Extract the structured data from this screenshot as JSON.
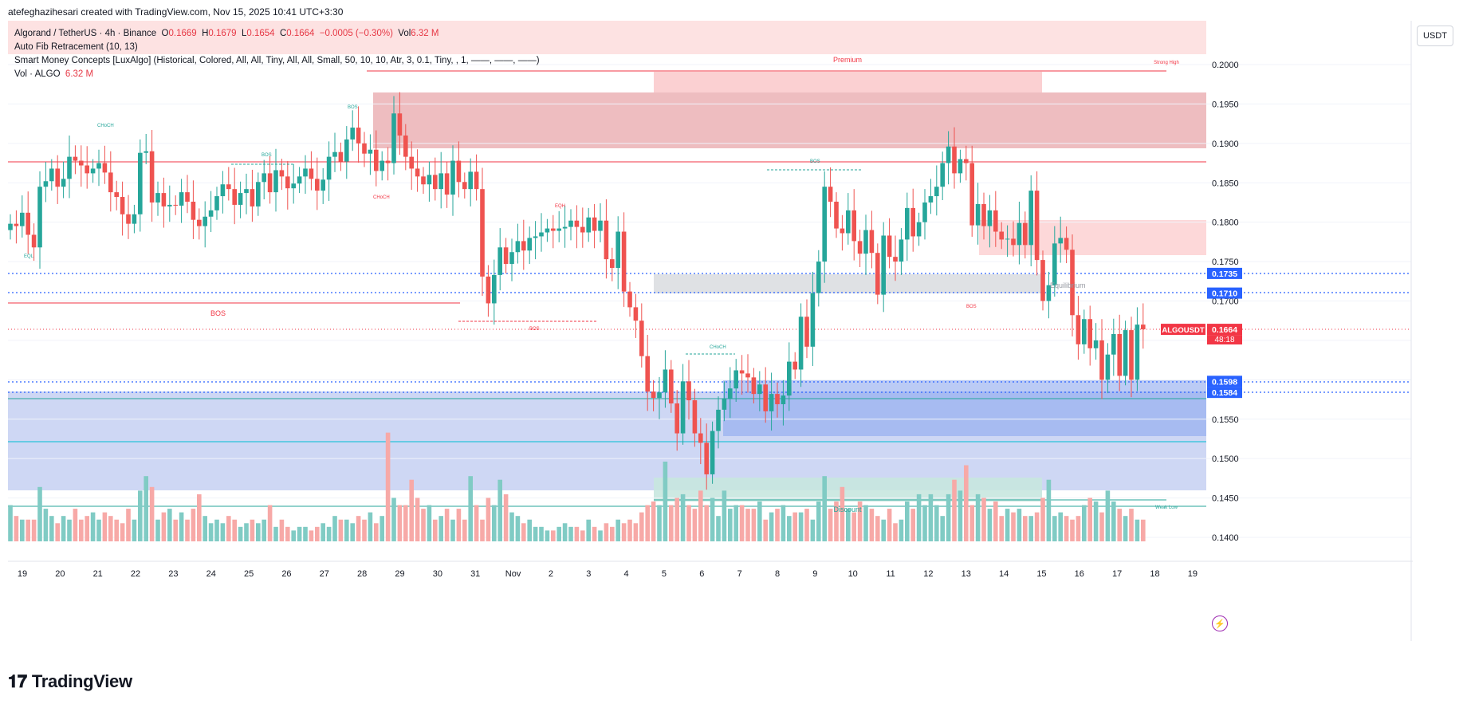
{
  "header": {
    "created_text": "atefeghazihesari created with TradingView.com, Nov 15, 2025 10:41 UTC+3:30"
  },
  "legend": {
    "symbol_line": "Algorand / TetherUS · 4h · Binance",
    "o_label": "O",
    "o_value": "0.1669",
    "h_label": "H",
    "h_value": "0.1679",
    "l_label": "L",
    "l_value": "0.1654",
    "c_label": "C",
    "c_value": "0.1664",
    "change": "−0.0005 (−0.30%)",
    "vol_label": "Vol",
    "vol_value": "6.32 M",
    "indicator1": "Auto Fib Retracement (10, 13)",
    "indicator2": "Smart Money Concepts [LuxAlgo] (Historical, Colored, All, All, Tiny, All, All, Small, 50, 10, 10, Atr, 3, 0.1, Tiny, , 1, ——, ——, ——)",
    "indicator3_label": "Vol · ALGO",
    "indicator3_value": "6.32 M"
  },
  "currency_button": "USDT",
  "brand": "TradingView",
  "colors": {
    "bull": "#26a69a",
    "bear": "#ef5350",
    "bull_vol": "#80cbc4",
    "bear_vol": "#f7a9a7",
    "price_label": "#f23645",
    "blue_label": "#2962ff"
  },
  "chart_data": {
    "type": "candlestick",
    "symbol": "ALGOUSDT",
    "timeframe": "4h",
    "ylim": [
      0.1395,
      0.2015
    ],
    "y_ticks": [
      "0.2000",
      "0.1950",
      "0.1900",
      "0.1850",
      "0.1800",
      "0.1750",
      "0.1700",
      "0.1650",
      "0.1600",
      "0.1550",
      "0.1500",
      "0.1450",
      "0.1400"
    ],
    "x_labels": [
      "19",
      "20",
      "21",
      "22",
      "23",
      "24",
      "25",
      "26",
      "27",
      "28",
      "29",
      "30",
      "31",
      "Nov",
      "2",
      "3",
      "4",
      "5",
      "6",
      "7",
      "8",
      "9",
      "10",
      "11",
      "12",
      "13",
      "14",
      "15",
      "16",
      "17",
      "18",
      "19"
    ],
    "price_labels": [
      {
        "text": "0.1735",
        "value": 0.1735,
        "color": "#2962ff"
      },
      {
        "text": "0.1710",
        "value": 0.171,
        "color": "#2962ff"
      },
      {
        "text": "0.1664",
        "value": 0.1664,
        "color": "#f23645",
        "symbol": "ALGOUSDT",
        "countdown": "48:18"
      },
      {
        "text": "0.1598",
        "value": 0.1598,
        "color": "#2962ff"
      },
      {
        "text": "0.1584",
        "value": 0.1584,
        "color": "#2962ff"
      }
    ],
    "zone_labels": {
      "premium": "Premium",
      "equilibrium": "Equilibrium",
      "discount": "Discount",
      "strong_high": "Strong High",
      "weak_low": "Weak Low"
    },
    "structure_labels": [
      "EQL",
      "CHoCH",
      "BOS",
      "BOS",
      "CHoCH",
      "BOS",
      "EQH",
      "BOS",
      "BOS",
      "CHoCH",
      "BOS",
      "CHoCH"
    ],
    "closes": [
      0.1798,
      0.1795,
      0.1812,
      0.1784,
      0.1768,
      0.1845,
      0.1852,
      0.1868,
      0.1845,
      0.1855,
      0.1883,
      0.1878,
      0.1872,
      0.1862,
      0.1868,
      0.1875,
      0.1863,
      0.1838,
      0.1832,
      0.181,
      0.1798,
      0.181,
      0.1888,
      0.189,
      0.1825,
      0.1837,
      0.182,
      0.1822,
      0.1821,
      0.1838,
      0.1826,
      0.1803,
      0.1795,
      0.1807,
      0.1815,
      0.1833,
      0.1848,
      0.1842,
      0.1822,
      0.1837,
      0.1842,
      0.182,
      0.1851,
      0.1862,
      0.1838,
      0.1866,
      0.1858,
      0.1843,
      0.1849,
      0.1858,
      0.1868,
      0.1855,
      0.184,
      0.1854,
      0.1883,
      0.1889,
      0.1877,
      0.1905,
      0.192,
      0.19,
      0.1887,
      0.1892,
      0.1865,
      0.1878,
      0.1875,
      0.1938,
      0.191,
      0.1883,
      0.1868,
      0.1858,
      0.1848,
      0.186,
      0.1842,
      0.1862,
      0.1835,
      0.1878,
      0.1851,
      0.1842,
      0.1864,
      0.1842,
      0.1731,
      0.1697,
      0.1733,
      0.1768,
      0.1747,
      0.1762,
      0.1776,
      0.1764,
      0.178,
      0.1782,
      0.1787,
      0.1792,
      0.1789,
      0.1792,
      0.1794,
      0.1802,
      0.1794,
      0.1787,
      0.1806,
      0.1789,
      0.1802,
      0.1753,
      0.1742,
      0.1788,
      0.1712,
      0.1692,
      0.1675,
      0.163,
      0.1585,
      0.1577,
      0.1584,
      0.1613,
      0.157,
      0.1532,
      0.1598,
      0.1574,
      0.1532,
      0.152,
      0.148,
      0.1535,
      0.1562,
      0.1576,
      0.1589,
      0.1612,
      0.1608,
      0.1603,
      0.1582,
      0.1594,
      0.156,
      0.1582,
      0.1569,
      0.158,
      0.1623,
      0.1613,
      0.168,
      0.1642,
      0.171,
      0.175,
      0.1845,
      0.1826,
      0.1792,
      0.1786,
      0.1815,
      0.1776,
      0.176,
      0.179,
      0.1761,
      0.1708,
      0.1783,
      0.1756,
      0.175,
      0.1778,
      0.1818,
      0.1782,
      0.18,
      0.1825,
      0.1833,
      0.1845,
      0.1875,
      0.1896,
      0.1862,
      0.188,
      0.1875,
      0.1796,
      0.1823,
      0.1795,
      0.1815,
      0.1788,
      0.1778,
      0.1779,
      0.1771,
      0.1799,
      0.1771,
      0.184,
      0.1752,
      0.17,
      0.172,
      0.1773,
      0.178,
      0.1765,
      0.1682,
      0.1645,
      0.1677,
      0.164,
      0.165,
      0.16,
      0.1632,
      0.1658,
      0.1605,
      0.1663,
      0.16,
      0.167,
      0.1664
    ],
    "volumes": [
      5,
      3.5,
      3,
      3,
      3,
      7.5,
      4.5,
      3.5,
      2.5,
      3.5,
      3,
      4.5,
      3,
      3.5,
      4,
      3,
      4,
      3.5,
      3,
      2.5,
      4.5,
      3,
      7,
      9,
      7.5,
      3,
      4,
      4.5,
      3,
      4,
      3,
      4.5,
      6.5,
      3.5,
      2.5,
      3,
      2.5,
      3.5,
      3,
      2,
      2.5,
      3,
      2.5,
      3,
      5,
      2,
      3,
      2,
      1.5,
      2,
      2,
      1.5,
      2,
      2.5,
      2,
      3.5,
      3,
      3,
      2.5,
      3.5,
      3,
      4,
      2.5,
      3.5,
      15,
      6,
      5,
      5,
      8.5,
      6,
      4.5,
      5,
      3,
      3.5,
      4.5,
      3,
      4.5,
      3,
      9,
      5,
      3,
      6,
      5,
      8.5,
      6.5,
      4,
      3.5,
      2.5,
      3,
      2,
      2,
      1.5,
      1.5,
      2,
      2.5,
      2,
      2,
      1.5,
      3,
      2,
      1.5,
      2.5,
      2,
      3,
      2.5,
      3,
      2.5,
      4,
      5,
      5.5,
      5,
      11,
      5,
      6,
      6.5,
      5,
      4.5,
      7,
      5,
      6,
      3.5,
      7,
      4.5,
      5,
      5,
      4.5,
      4.5,
      5.5,
      3,
      4,
      4.5,
      5,
      3.5,
      4,
      4,
      4.5,
      3,
      5.5,
      9,
      4.5,
      5.5,
      7.5,
      4.5,
      4,
      5.5,
      5,
      4.5,
      3.5,
      3,
      4.5,
      2.5,
      3,
      5.5,
      4.5,
      6.5,
      5,
      6.5,
      5,
      3.5,
      6.5,
      8.5,
      7,
      10.5,
      5,
      6.5,
      6,
      4.5,
      5.5,
      3.5,
      4.5,
      4,
      4.5,
      3.5,
      3.5,
      4,
      6,
      8.5,
      3.5,
      4,
      3.5,
      3,
      3.5,
      5,
      6,
      5.5,
      4,
      7,
      5.5,
      4.5,
      3.5,
      4.5,
      3,
      3
    ]
  }
}
